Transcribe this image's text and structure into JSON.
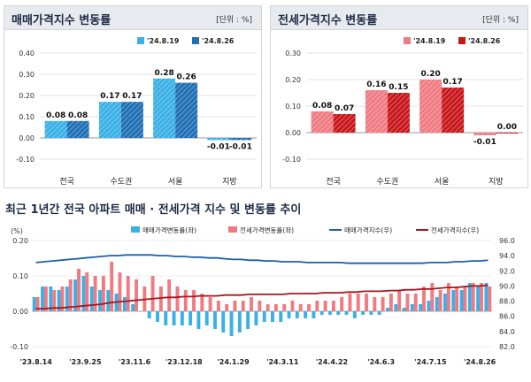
{
  "chart_data": [
    {
      "type": "bar",
      "title": "매매가격지수 변동률",
      "unit": "[단위 : %]",
      "categories": [
        "전국",
        "수도권",
        "서울",
        "지방"
      ],
      "series": [
        {
          "name": "'24.8.19",
          "values": [
            0.08,
            0.17,
            0.28,
            -0.01
          ],
          "labels": [
            "0.08",
            "0.17",
            "0.28",
            "-0.01"
          ],
          "color": "#39b0e6"
        },
        {
          "name": "'24.8.26",
          "values": [
            0.08,
            0.17,
            0.26,
            -0.01
          ],
          "labels": [
            "0.08",
            "0.17",
            "0.26",
            "-0.01"
          ],
          "color": "#1e6fb5"
        }
      ],
      "ylim": [
        -0.1,
        0.4
      ],
      "yticks": [
        "-0.10",
        "0.00",
        "0.10",
        "0.20",
        "0.30",
        "0.40"
      ],
      "grid": true,
      "legend": "top-right"
    },
    {
      "type": "bar",
      "title": "전세가격지수 변동률",
      "unit": "[단위 : %]",
      "categories": [
        "전국",
        "수도권",
        "서울",
        "지방"
      ],
      "series": [
        {
          "name": "'24.8.19",
          "values": [
            0.08,
            0.16,
            0.2,
            -0.01
          ],
          "labels": [
            "0.08",
            "0.16",
            "0.20",
            "-0.01"
          ],
          "color": "#f07a82"
        },
        {
          "name": "'24.8.26",
          "values": [
            0.07,
            0.15,
            0.17,
            0.0
          ],
          "labels": [
            "0.07",
            "0.15",
            "0.17",
            "0.00"
          ],
          "color": "#c8151b"
        }
      ],
      "ylim": [
        -0.1,
        0.3
      ],
      "yticks": [
        "-0.10",
        "0.00",
        "0.10",
        "0.20",
        "0.30"
      ],
      "grid": true,
      "legend": "top-right"
    },
    {
      "type": "bar",
      "title": "최근 1년간 전국 아파트 매매 · 전세가격 지수 및 변동률 추이",
      "left_axis_label": "(%)",
      "x_tick_labels": [
        "'23.8.14",
        "'23.9.25",
        "'23.11.6",
        "'23.12.18",
        "'24.1.29",
        "'24.3.11",
        "'24.4.22",
        "'24.6.3",
        "'24.7.15",
        "'24.8.26"
      ],
      "ylim_left": [
        -0.1,
        0.2
      ],
      "yticks_left": [
        "-0.10",
        "0.00",
        "0.10",
        "0.20"
      ],
      "ylim_right": [
        82.0,
        96.0
      ],
      "yticks_right": [
        "82.0",
        "84.0",
        "86.0",
        "88.0",
        "90.0",
        "92.0",
        "94.0",
        "96.0"
      ],
      "legend": "top",
      "series": [
        {
          "name": "매매가격변동률(좌)",
          "axis": "left",
          "kind": "bar",
          "color": "#39b0e6",
          "values": [
            0.04,
            0.07,
            0.07,
            0.06,
            0.07,
            0.09,
            0.1,
            0.07,
            0.06,
            0.06,
            0.05,
            0.04,
            0.02,
            0.0,
            -0.02,
            -0.03,
            -0.04,
            -0.04,
            -0.04,
            -0.04,
            -0.05,
            -0.04,
            -0.05,
            -0.06,
            -0.07,
            -0.06,
            -0.05,
            -0.04,
            -0.03,
            -0.03,
            -0.03,
            -0.02,
            -0.02,
            -0.02,
            -0.02,
            -0.01,
            -0.01,
            -0.01,
            -0.01,
            -0.02,
            -0.01,
            -0.01,
            -0.01,
            0.01,
            0.02,
            0.01,
            0.02,
            0.02,
            0.03,
            0.04,
            0.05,
            0.06,
            0.06,
            0.08,
            0.07,
            0.08
          ]
        },
        {
          "name": "전세가격변동률(좌)",
          "axis": "left",
          "kind": "bar",
          "color": "#f07a82",
          "values": [
            0.04,
            0.07,
            0.06,
            0.07,
            0.09,
            0.12,
            0.11,
            0.1,
            0.1,
            0.14,
            0.11,
            0.1,
            0.09,
            0.07,
            0.1,
            0.07,
            0.09,
            0.07,
            0.06,
            0.06,
            0.05,
            0.04,
            0.03,
            0.02,
            0.03,
            0.03,
            0.04,
            0.03,
            0.02,
            0.02,
            0.02,
            0.03,
            0.02,
            0.02,
            0.03,
            0.03,
            0.03,
            0.04,
            0.05,
            0.05,
            0.05,
            0.04,
            0.04,
            0.05,
            0.06,
            0.05,
            0.05,
            0.07,
            0.08,
            0.06,
            0.08,
            0.07,
            0.07,
            0.08,
            0.08,
            0.07
          ]
        },
        {
          "name": "매매가격지수(우)",
          "axis": "right",
          "kind": "line",
          "color": "#1c5fae",
          "values": [
            93.1,
            93.2,
            93.3,
            93.4,
            93.5,
            93.6,
            93.7,
            93.8,
            93.9,
            94.0,
            94.0,
            94.1,
            94.1,
            94.1,
            94.1,
            94.0,
            94.0,
            93.9,
            93.9,
            93.8,
            93.8,
            93.7,
            93.7,
            93.6,
            93.5,
            93.5,
            93.4,
            93.4,
            93.3,
            93.3,
            93.2,
            93.2,
            93.2,
            93.1,
            93.1,
            93.1,
            93.1,
            93.1,
            93.0,
            93.0,
            93.0,
            93.0,
            93.0,
            93.0,
            93.0,
            93.0,
            93.0,
            93.0,
            93.1,
            93.1,
            93.1,
            93.2,
            93.2,
            93.3,
            93.3,
            93.4
          ]
        },
        {
          "name": "전세가격지수(우)",
          "axis": "right",
          "kind": "line",
          "color": "#a8151d",
          "values": [
            87.0,
            87.0,
            87.1,
            87.1,
            87.2,
            87.3,
            87.4,
            87.5,
            87.6,
            87.8,
            87.9,
            88.0,
            88.1,
            88.2,
            88.3,
            88.4,
            88.5,
            88.5,
            88.6,
            88.6,
            88.7,
            88.7,
            88.7,
            88.8,
            88.8,
            88.8,
            88.9,
            88.9,
            88.9,
            88.9,
            88.9,
            89.0,
            89.0,
            89.0,
            89.0,
            89.1,
            89.1,
            89.1,
            89.2,
            89.2,
            89.3,
            89.3,
            89.3,
            89.4,
            89.4,
            89.5,
            89.5,
            89.6,
            89.6,
            89.7,
            89.8,
            89.8,
            89.9,
            90.0,
            90.0,
            90.1
          ]
        }
      ]
    }
  ]
}
